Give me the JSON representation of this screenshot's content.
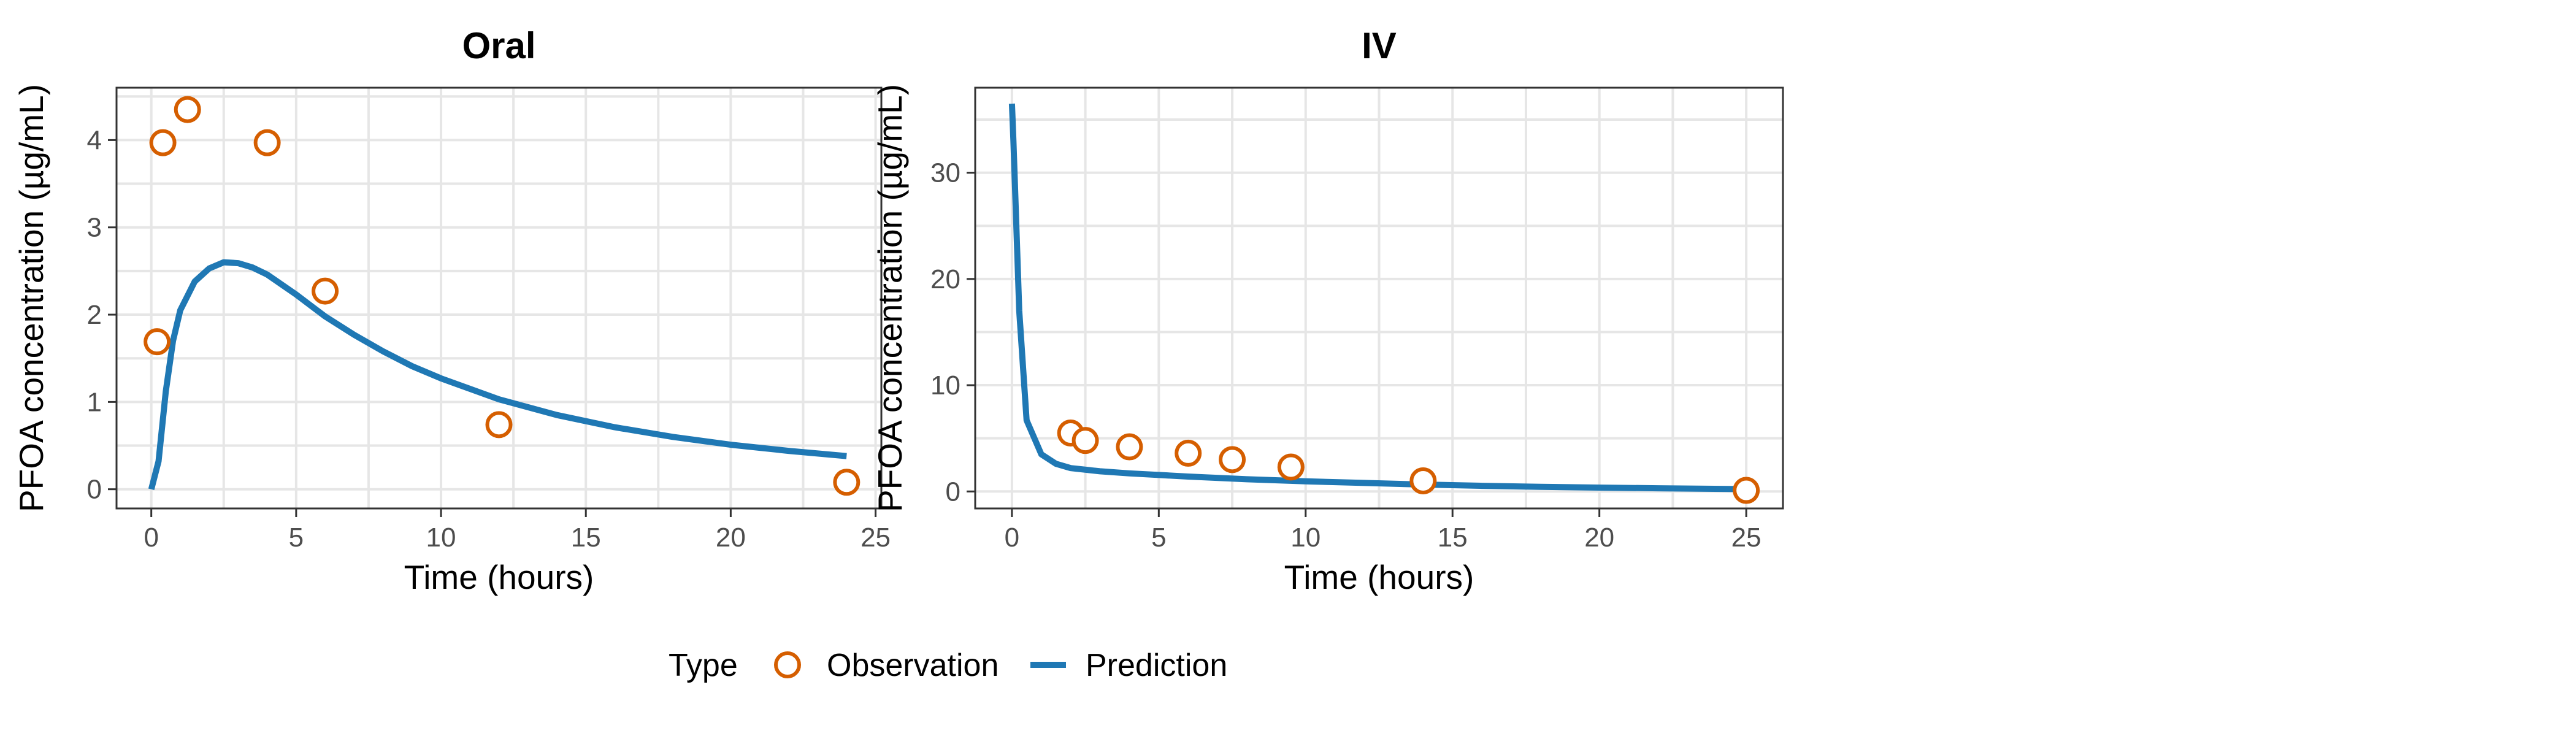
{
  "colors": {
    "observation": "#d55e00",
    "prediction": "#1f78b4"
  },
  "legend": {
    "title": "Type",
    "observation_label": "Observation",
    "prediction_label": "Prediction"
  },
  "chart_data": [
    {
      "type": "line",
      "title": "Oral",
      "xlabel": "Time (hours)",
      "ylabel": "PFOA concentration (µg/mL)",
      "xlim": [
        -1.2,
        25.2
      ],
      "ylim": [
        -0.22,
        4.6
      ],
      "xticks": [
        0,
        5,
        10,
        15,
        20,
        25
      ],
      "yticks": [
        0,
        1,
        2,
        3,
        4
      ],
      "grid": true,
      "observations": {
        "name": "Observation",
        "x": [
          0.2,
          0.4,
          1.25,
          4.0,
          6.0,
          12.0,
          24.0
        ],
        "y": [
          1.69,
          3.97,
          4.35,
          3.97,
          2.27,
          0.74,
          0.08
        ]
      },
      "prediction": {
        "name": "Prediction",
        "x": [
          0,
          0.25,
          0.5,
          0.75,
          1.0,
          1.5,
          2.0,
          2.5,
          3.0,
          3.5,
          4.0,
          5.0,
          6.0,
          7.0,
          8.0,
          9.0,
          10.0,
          12.0,
          14.0,
          16.0,
          18.0,
          20.0,
          22.0,
          24.0
        ],
        "y": [
          0.0,
          0.32,
          1.12,
          1.7,
          2.05,
          2.38,
          2.53,
          2.6,
          2.59,
          2.54,
          2.46,
          2.23,
          1.98,
          1.77,
          1.58,
          1.41,
          1.27,
          1.03,
          0.85,
          0.71,
          0.6,
          0.51,
          0.44,
          0.38
        ]
      }
    },
    {
      "type": "line",
      "title": "IV",
      "xlabel": "Time (hours)",
      "ylabel": "PFOA concentration (µg/mL)",
      "xlim": [
        -1.25,
        26.25
      ],
      "ylim": [
        -1.6,
        38.0
      ],
      "xticks": [
        0,
        5,
        10,
        15,
        20,
        25
      ],
      "yticks": [
        0,
        10,
        20,
        30
      ],
      "grid": true,
      "observations": {
        "name": "Observation",
        "x": [
          2.0,
          2.5,
          4.0,
          6.0,
          7.5,
          9.5,
          14.0,
          25.0
        ],
        "y": [
          5.5,
          4.8,
          4.2,
          3.6,
          3.0,
          2.3,
          1.0,
          0.1
        ]
      },
      "prediction": {
        "name": "Prediction",
        "x": [
          0,
          0.05,
          0.1,
          0.25,
          0.5,
          1.0,
          1.5,
          2.0,
          3.0,
          4.0,
          5.0,
          6.0,
          8.0,
          10.0,
          12.0,
          14.0,
          16.0,
          18.0,
          20.0,
          22.0,
          25.0
        ],
        "y": [
          36.5,
          33.0,
          29.0,
          17.0,
          6.7,
          3.5,
          2.6,
          2.2,
          1.9,
          1.7,
          1.55,
          1.4,
          1.15,
          0.95,
          0.8,
          0.65,
          0.53,
          0.44,
          0.36,
          0.3,
          0.22
        ]
      }
    }
  ]
}
